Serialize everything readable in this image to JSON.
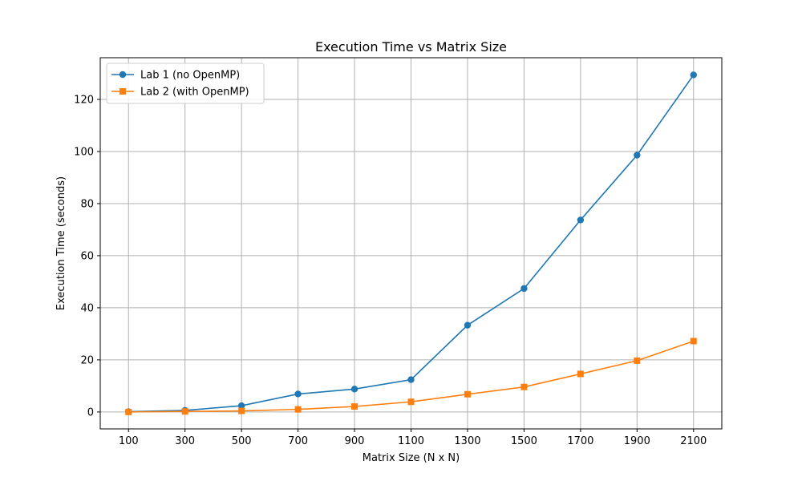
{
  "chart_data": {
    "type": "line",
    "title": "Execution Time vs Matrix Size",
    "xlabel": "Matrix Size (N x N)",
    "ylabel": "Execution Time (seconds)",
    "x": [
      100,
      300,
      500,
      700,
      900,
      1100,
      1300,
      1500,
      1700,
      1900,
      2100
    ],
    "x_ticks": [
      "100",
      "300",
      "500",
      "700",
      "900",
      "1100",
      "1300",
      "1500",
      "1700",
      "1900",
      "2100"
    ],
    "y_ticks": [
      0,
      20,
      40,
      60,
      80,
      100,
      120
    ],
    "xlim": [
      0,
      2200
    ],
    "ylim": [
      -6.5,
      136
    ],
    "grid": true,
    "legend_position": "upper-left",
    "series": [
      {
        "name": "Lab 1 (no OpenMP)",
        "color": "#1f77b4",
        "marker": "circle",
        "values": [
          0.1,
          0.6,
          2.4,
          6.9,
          8.8,
          12.4,
          33.3,
          47.4,
          73.7,
          98.6,
          129.4
        ]
      },
      {
        "name": "Lab 2 (with OpenMP)",
        "color": "#ff7f0e",
        "marker": "square",
        "values": [
          0.0,
          0.2,
          0.4,
          1.0,
          2.1,
          3.9,
          6.8,
          9.6,
          14.6,
          19.7,
          27.2
        ]
      }
    ]
  }
}
